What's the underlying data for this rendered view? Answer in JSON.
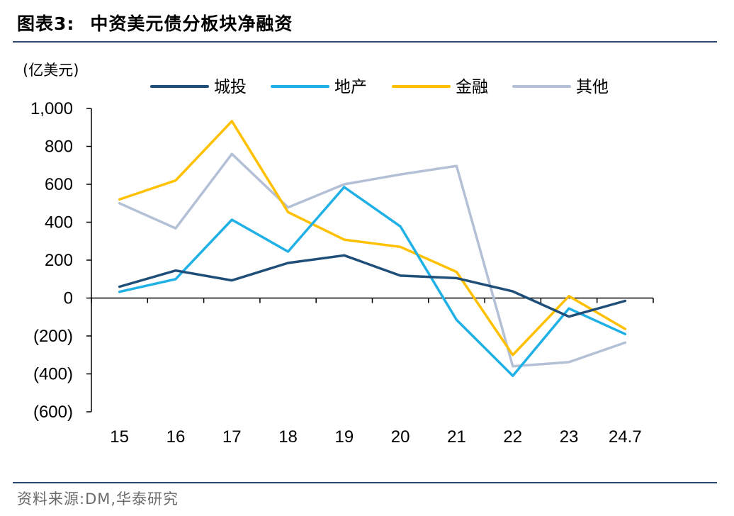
{
  "header": {
    "figure_number": "图表3:",
    "title": "中资美元债分板块净融资"
  },
  "source": "资料来源:DM,华泰研究",
  "chart_data": {
    "type": "line",
    "unit_label": "(亿美元)",
    "categories": [
      "15",
      "16",
      "17",
      "18",
      "19",
      "20",
      "21",
      "22",
      "23",
      "24.7"
    ],
    "ylim": [
      -600,
      1000
    ],
    "yticks": [
      1000,
      800,
      600,
      400,
      200,
      0,
      -200,
      -400,
      -600
    ],
    "ytick_labels": [
      "1,000",
      "800",
      "600",
      "400",
      "200",
      "0",
      "(200)",
      "(400)",
      "(600)"
    ],
    "grid": false,
    "legend_position": "top",
    "series": [
      {
        "name": "城投",
        "color": "#1f4e79",
        "values": [
          60,
          145,
          93,
          185,
          225,
          118,
          105,
          35,
          -98,
          -15
        ]
      },
      {
        "name": "地产",
        "color": "#1fb1e6",
        "values": [
          33,
          100,
          413,
          245,
          585,
          378,
          -115,
          -410,
          -55,
          -190
        ]
      },
      {
        "name": "金融",
        "color": "#ffc000",
        "values": [
          520,
          620,
          933,
          453,
          308,
          270,
          138,
          -300,
          10,
          -163
        ]
      },
      {
        "name": "其他",
        "color": "#b4c0d6",
        "values": [
          500,
          368,
          760,
          478,
          600,
          652,
          697,
          -360,
          -338,
          -235
        ]
      }
    ]
  }
}
